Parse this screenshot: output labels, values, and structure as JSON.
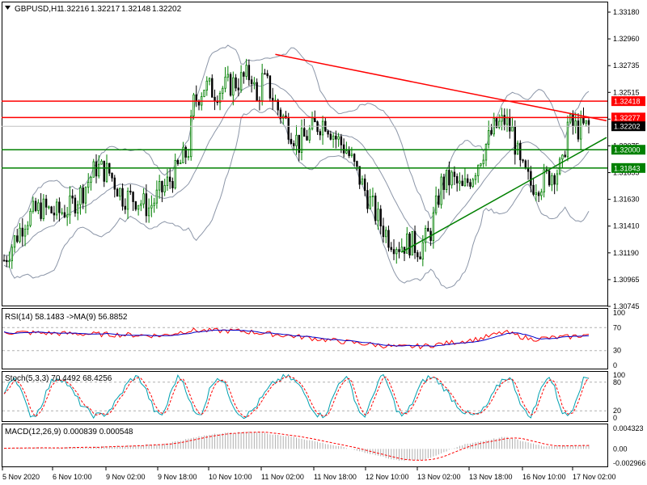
{
  "header": {
    "symbol": "GBPUSD,H1",
    "ohlc": [
      "1.32216",
      "1.32217",
      "1.32148",
      "1.32202"
    ]
  },
  "chart_data": {
    "type": "candlestick",
    "symbol": "GBPUSD",
    "timeframe": "H1",
    "price_axis": {
      "ticks": [
        "1.33180",
        "1.32960",
        "1.32735",
        "1.32515",
        "1.32295",
        "1.32075",
        "1.31855",
        "1.31630",
        "1.31410",
        "1.31190",
        "1.30965",
        "1.30745"
      ],
      "range": [
        1.3066,
        1.3326
      ]
    },
    "time_axis": {
      "labels": [
        "5 Nov 2020",
        "6 Nov 10:00",
        "9 Nov 02:00",
        "9 Nov 18:00",
        "10 Nov 10:00",
        "11 Nov 02:00",
        "11 Nov 18:00",
        "12 Nov 10:00",
        "13 Nov 02:00",
        "13 Nov 18:00",
        "16 Nov 10:00",
        "17 Nov 02:00"
      ]
    },
    "price_path": [
      [
        0,
        1.3105
      ],
      [
        8,
        1.314
      ],
      [
        14,
        1.315
      ],
      [
        20,
        1.3145
      ],
      [
        25,
        1.315
      ],
      [
        30,
        1.3165
      ],
      [
        35,
        1.3185
      ],
      [
        40,
        1.318
      ],
      [
        45,
        1.316
      ],
      [
        50,
        1.3158
      ],
      [
        55,
        1.315
      ],
      [
        60,
        1.3165
      ],
      [
        65,
        1.318
      ],
      [
        70,
        1.32
      ],
      [
        72,
        1.324
      ],
      [
        76,
        1.3255
      ],
      [
        80,
        1.325
      ],
      [
        85,
        1.3255
      ],
      [
        90,
        1.326
      ],
      [
        94,
        1.3265
      ],
      [
        96,
        1.324
      ],
      [
        98,
        1.326
      ],
      [
        100,
        1.3255
      ],
      [
        104,
        1.3235
      ],
      [
        108,
        1.322
      ],
      [
        112,
        1.3205
      ],
      [
        118,
        1.322
      ],
      [
        122,
        1.3225
      ],
      [
        126,
        1.321
      ],
      [
        130,
        1.32
      ],
      [
        134,
        1.318
      ],
      [
        138,
        1.316
      ],
      [
        142,
        1.314
      ],
      [
        146,
        1.3125
      ],
      [
        150,
        1.3118
      ],
      [
        154,
        1.312
      ],
      [
        158,
        1.3115
      ],
      [
        162,
        1.313
      ],
      [
        166,
        1.317
      ],
      [
        170,
        1.3175
      ],
      [
        174,
        1.3165
      ],
      [
        178,
        1.318
      ],
      [
        182,
        1.32
      ],
      [
        186,
        1.3218
      ],
      [
        190,
        1.3225
      ],
      [
        193,
        1.3215
      ],
      [
        196,
        1.3185
      ],
      [
        200,
        1.317
      ],
      [
        204,
        1.3172
      ],
      [
        208,
        1.318
      ],
      [
        212,
        1.3185
      ],
      [
        214,
        1.3222
      ],
      [
        218,
        1.3218
      ],
      [
        222,
        1.322
      ]
    ],
    "bollinger_bands": true,
    "price_levels": [
      {
        "value": 1.32418,
        "label": "1.32418",
        "color": "#ff0000"
      },
      {
        "value": 1.32277,
        "label": "1.32277",
        "color": "#ff0000"
      },
      {
        "value": 1.32,
        "label": "1.32000",
        "color": "#008000"
      },
      {
        "value": 1.31843,
        "label": "1.31843",
        "color": "#008000"
      }
    ],
    "current_price": {
      "value": 1.32202,
      "label": "1.32202"
    },
    "trendlines": [
      {
        "name": "resistance",
        "color": "#ff0000",
        "from": [
          103,
          1.3282
        ],
        "to": [
          222,
          1.3228
        ]
      },
      {
        "name": "support",
        "color": "#008000",
        "from": [
          151,
          1.3112
        ],
        "to": [
          222,
          1.3202
        ]
      }
    ],
    "rsi": {
      "label": "RSI(14) 58.1483 ->MA(9) 56.8852",
      "value": 58.1483,
      "ma": 56.8852,
      "levels": [
        "100",
        "70",
        "30",
        "0"
      ],
      "path": [
        [
          0,
          62
        ],
        [
          20,
          60
        ],
        [
          40,
          58
        ],
        [
          60,
          56
        ],
        [
          70,
          65
        ],
        [
          90,
          64
        ],
        [
          110,
          55
        ],
        [
          130,
          45
        ],
        [
          150,
          36
        ],
        [
          160,
          38
        ],
        [
          180,
          50
        ],
        [
          190,
          62
        ],
        [
          200,
          50
        ],
        [
          215,
          54
        ],
        [
          222,
          58
        ]
      ]
    },
    "stochastic": {
      "label": "Stoch(5,3,3) 70.4492 68.4256",
      "main": 70.4492,
      "signal": 68.4256,
      "levels": [
        "100",
        "80",
        "20",
        "0"
      ]
    },
    "macd": {
      "label": "MACD(12,26,9) 0.000839 0.000548",
      "main": 0.000839,
      "signal": 0.000548,
      "levels": [
        "0.004323",
        "0.00",
        "-0.002966"
      ],
      "range": [
        -0.0035,
        0.0048
      ],
      "path": [
        [
          0,
          0.0002
        ],
        [
          30,
          0.0003
        ],
        [
          60,
          0.001
        ],
        [
          80,
          0.0032
        ],
        [
          95,
          0.0036
        ],
        [
          110,
          0.0025
        ],
        [
          130,
          0.0002
        ],
        [
          150,
          -0.0025
        ],
        [
          160,
          -0.0022
        ],
        [
          175,
          0.001
        ],
        [
          190,
          0.0025
        ],
        [
          205,
          0.0006
        ],
        [
          222,
          0.0008
        ]
      ]
    }
  },
  "colors": {
    "bull": "#008000",
    "bear": "#000000",
    "resistance": "#ff0000",
    "support": "#008000",
    "bands": "#8c96a8",
    "rsi_line": "#ff0000",
    "ma_line": "#0000c8",
    "stoch_main": "#00a0b0",
    "stoch_signal": "#ff0000",
    "macd_hist": "#b0b0b0",
    "macd_signal": "#ff0000"
  }
}
